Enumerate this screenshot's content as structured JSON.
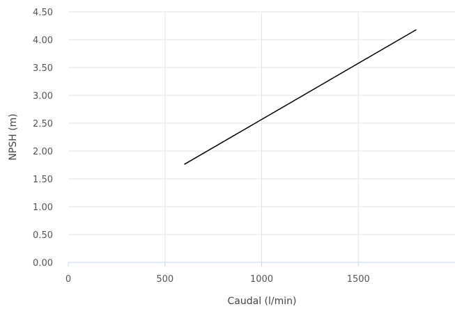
{
  "chart_data": {
    "type": "line",
    "xlabel": "Caudal (l/min)",
    "ylabel": "NPSH (m)",
    "xlim": [
      0,
      2000
    ],
    "ylim": [
      0,
      4.5
    ],
    "x_ticks": [
      "0",
      "500",
      "1000",
      "1500"
    ],
    "y_ticks": [
      "0.00",
      "0.50",
      "1.00",
      "1.50",
      "2.00",
      "2.50",
      "3.00",
      "3.50",
      "4.00",
      "4.50"
    ],
    "grid": true,
    "series": [
      {
        "color": "#000000",
        "x": [
          600,
          1800
        ],
        "y": [
          1.76,
          4.18
        ]
      }
    ]
  }
}
